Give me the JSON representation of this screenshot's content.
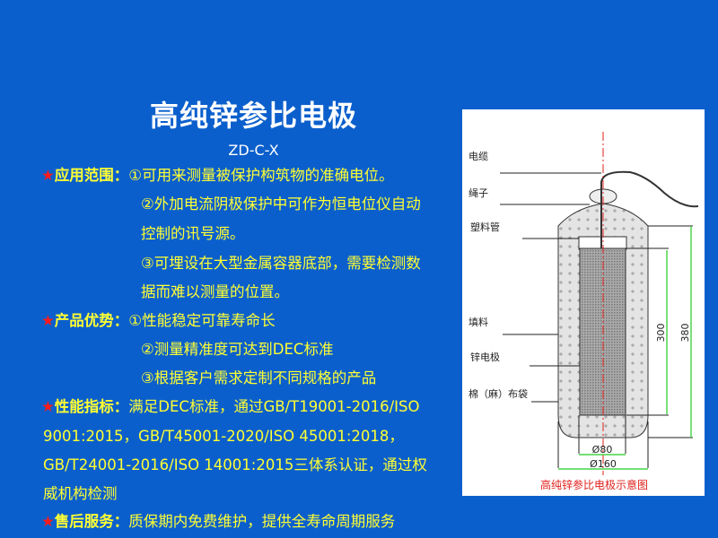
{
  "title": "高纯锌参比电极",
  "model": "ZD-C-X",
  "sections": [
    {
      "heading": "应用范围：",
      "lines": [
        "①可用来测量被保护构筑物的准确电位。",
        "②外加电流阴极保护中可作为恒电位仪自动",
        "控制的讯号源。",
        "③可埋设在大型金属容器底部，需要检测数",
        "据而难以测量的位置。"
      ]
    },
    {
      "heading": "产品优势：",
      "lines": [
        "①性能稳定可靠寿命长",
        "②测量精准度可达到DEC标准",
        "③根据客户需求定制不同规格的产品"
      ]
    },
    {
      "heading": "性能指标：",
      "lines": [
        "满足DEC标准，通过GB/T19001-2016/ISO",
        "9001:2015，GB/T45001-2020/ISO 45001:2018，",
        "GB/T24001-2016/ISO 14001:2015三体系认证，通过权",
        "威机构检测"
      ]
    },
    {
      "heading": "售后服务：",
      "lines": [
        "质保期内免费维护，提供全寿命周期服务"
      ]
    }
  ],
  "figure": {
    "labels": [
      "电缆",
      "绳子",
      "塑料管",
      "填料",
      "锌电极",
      "棉（麻）布袋"
    ],
    "dim_inner_height": "300",
    "dim_outer_height": "380",
    "dim_inner_dia": "Ø80",
    "dim_outer_dia": "Ø160",
    "caption": "高纯锌参比电极示意图"
  },
  "colors": {
    "background": "#0b5fcc",
    "text": "#ffff33",
    "star": "#ff1a1a",
    "caption": "#e0201a",
    "dimension": "#22cc22"
  }
}
